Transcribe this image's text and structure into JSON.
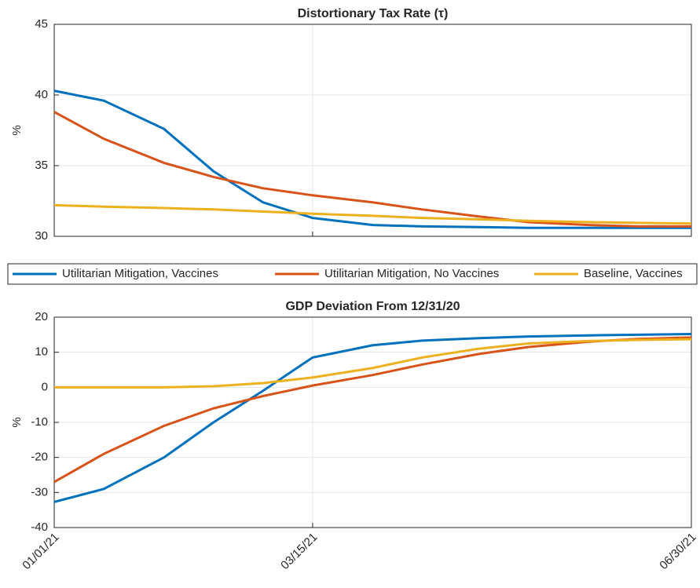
{
  "chart_data": [
    {
      "type": "line",
      "title": "Distortionary Tax Rate (τ)",
      "ylabel": "%",
      "x": [
        "01/01/21",
        "01/15/21",
        "02/01/21",
        "02/15/21",
        "03/01/21",
        "03/15/21",
        "04/01/21",
        "04/15/21",
        "05/01/21",
        "05/15/21",
        "06/01/21",
        "06/15/21",
        "06/30/21"
      ],
      "xlim": [
        "01/01/21",
        "06/30/21"
      ],
      "xticks": [
        "01/01/21",
        "03/15/21",
        "06/30/21"
      ],
      "ylim": [
        30,
        45
      ],
      "yticks": [
        30,
        35,
        40,
        45
      ],
      "grid": true,
      "legend": "between",
      "series": [
        {
          "name": "Utilitarian Mitigation, Vaccines",
          "color": "#0072bd",
          "values": [
            40.3,
            39.6,
            37.6,
            34.6,
            32.4,
            31.3,
            30.8,
            30.7,
            30.65,
            30.6,
            30.6,
            30.6,
            30.6
          ]
        },
        {
          "name": "Utilitarian Mitigation, No Vaccines",
          "color": "#d95319",
          "values": [
            38.8,
            36.9,
            35.2,
            34.2,
            33.4,
            32.9,
            32.4,
            31.9,
            31.4,
            31.0,
            30.8,
            30.7,
            30.7
          ]
        },
        {
          "name": "Baseline, Vaccines",
          "color": "#edb120",
          "values": [
            32.2,
            32.1,
            32.0,
            31.9,
            31.75,
            31.6,
            31.45,
            31.3,
            31.2,
            31.1,
            31.0,
            30.95,
            30.9
          ]
        }
      ]
    },
    {
      "type": "line",
      "title": "GDP Deviation From 12/31/20",
      "ylabel": "%",
      "x": [
        "01/01/21",
        "01/15/21",
        "02/01/21",
        "02/15/21",
        "03/01/21",
        "03/15/21",
        "04/01/21",
        "04/15/21",
        "05/01/21",
        "05/15/21",
        "06/01/21",
        "06/15/21",
        "06/30/21"
      ],
      "xlim": [
        "01/01/21",
        "06/30/21"
      ],
      "xticks": [
        "01/01/21",
        "03/15/21",
        "06/30/21"
      ],
      "ylim": [
        -40,
        20
      ],
      "yticks": [
        -40,
        -30,
        -20,
        -10,
        0,
        10,
        20
      ],
      "grid": true,
      "series": [
        {
          "color": "#0072bd",
          "values": [
            -32.7,
            -29,
            -20,
            -10,
            -1,
            8.5,
            12,
            13.3,
            14,
            14.5,
            14.8,
            15,
            15.2
          ]
        },
        {
          "color": "#d95319",
          "values": [
            -27,
            -19,
            -11,
            -6,
            -2.5,
            0.5,
            3.5,
            6.5,
            9.5,
            11.5,
            13,
            13.8,
            14.2
          ]
        },
        {
          "color": "#edb120",
          "values": [
            0,
            0,
            0,
            0.3,
            1.2,
            2.8,
            5.5,
            8.5,
            11,
            12.5,
            13.2,
            13.5,
            13.7
          ]
        }
      ]
    }
  ]
}
